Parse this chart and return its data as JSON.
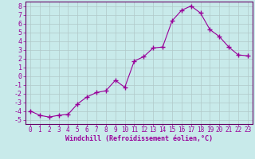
{
  "x": [
    0,
    1,
    2,
    3,
    4,
    5,
    6,
    7,
    8,
    9,
    10,
    11,
    12,
    13,
    14,
    15,
    16,
    17,
    18,
    19,
    20,
    21,
    22,
    23
  ],
  "y": [
    -4.0,
    -4.5,
    -4.7,
    -4.5,
    -4.4,
    -3.2,
    -2.4,
    -1.9,
    -1.7,
    -0.5,
    -1.3,
    1.7,
    2.2,
    3.2,
    3.3,
    6.3,
    7.5,
    8.0,
    7.2,
    5.3,
    4.5,
    3.3,
    2.4,
    2.3
  ],
  "line_color": "#990099",
  "marker": "+",
  "marker_color": "#990099",
  "background_color": "#c8eaea",
  "grid_color": "#b0c8c8",
  "xlabel": "Windchill (Refroidissement éolien,°C)",
  "tick_color": "#990099",
  "label_color": "#990099",
  "ylim": [
    -5.5,
    8.5
  ],
  "xlim": [
    -0.5,
    23.5
  ],
  "yticks": [
    -5,
    -4,
    -3,
    -2,
    -1,
    0,
    1,
    2,
    3,
    4,
    5,
    6,
    7,
    8
  ],
  "xticks": [
    0,
    1,
    2,
    3,
    4,
    5,
    6,
    7,
    8,
    9,
    10,
    11,
    12,
    13,
    14,
    15,
    16,
    17,
    18,
    19,
    20,
    21,
    22,
    23
  ],
  "spine_color": "#660066",
  "figsize": [
    3.2,
    2.0
  ],
  "dpi": 100
}
